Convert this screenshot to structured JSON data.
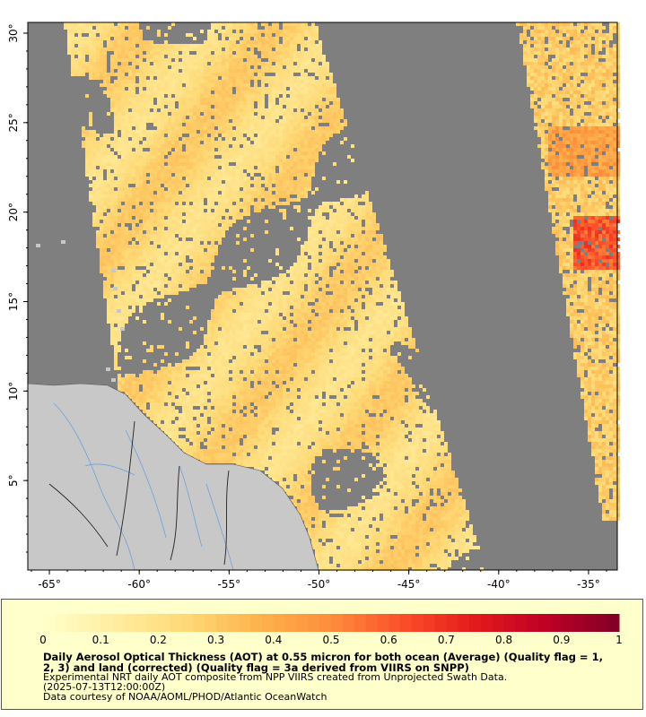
{
  "map": {
    "x_ticks": [
      "-65°",
      "-60°",
      "-55°",
      "-50°",
      "-45°",
      "-40°",
      "-35°"
    ],
    "x_tick_values": [
      -65,
      -60,
      -55,
      -50,
      -45,
      -40,
      -35
    ],
    "y_ticks": [
      "5°",
      "10°",
      "15°",
      "20°",
      "25°",
      "30°"
    ],
    "y_tick_values": [
      5,
      10,
      15,
      20,
      25,
      30
    ],
    "lon_range": [
      -66.2,
      -33.4
    ],
    "lat_range": [
      0.0,
      30.6
    ],
    "colors": {
      "no_data": "#7f7f7f",
      "land": "#c8c8c8",
      "rivers": "#6fa0d8",
      "borders": "#222222"
    },
    "legend": {
      "min": 0,
      "max": 1,
      "tick_labels": [
        "0",
        "0.1",
        "0.2",
        "0.3",
        "0.4",
        "0.5",
        "0.6",
        "0.7",
        "0.8",
        "0.9",
        "1"
      ],
      "colormap": "YlOrRd",
      "caption_line1": "Daily Aerosol Optical Thickness (AOT) at 0.55 micron for both ocean (Average) (Quality flag = 1,",
      "caption_line2": "2, 3) and land (corrected) (Quality flag = 3a derived from VIIRS on SNPP)",
      "caption_line3": "Experimental NRT daily AOT composite from NPP VIIRS created from Unprojected Swath Data.",
      "caption_line4": "(2025-07-13T12:00:00Z)",
      "caption_line5": "Data courtesy of NOAA/AOML/PHOD/Atlantic OceanWatch"
    }
  }
}
